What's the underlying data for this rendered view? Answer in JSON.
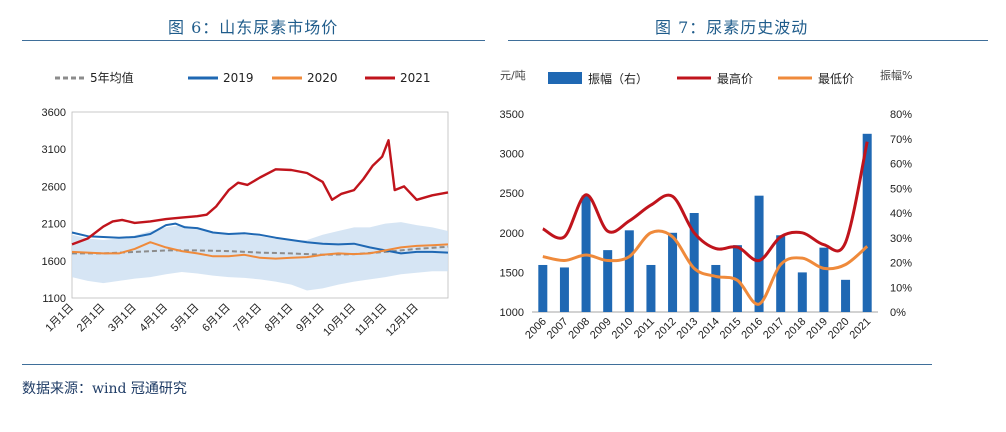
{
  "left": {
    "title": "图 6：山东尿素市场价",
    "chart_data": {
      "type": "line",
      "ylim": [
        1100,
        3600
      ],
      "yticks": [
        1100,
        1600,
        2100,
        2600,
        3100,
        3600
      ],
      "xticks": [
        "1月1日",
        "2月1日",
        "3月1日",
        "4月1日",
        "5月1日",
        "6月1日",
        "7月1日",
        "8月1日",
        "9月1日",
        "10月1日",
        "11月1日",
        "12月1日"
      ],
      "band": {
        "x": [
          0,
          0.5,
          1,
          1.5,
          2,
          2.5,
          3,
          3.5,
          4,
          4.5,
          5,
          5.5,
          6,
          6.5,
          7,
          7.5,
          8,
          8.5,
          9,
          9.5,
          10,
          10.5,
          11,
          11.5,
          12
        ],
        "upper": [
          1950,
          1900,
          1880,
          1900,
          1940,
          2000,
          2050,
          2080,
          2040,
          1980,
          1960,
          1950,
          1930,
          1900,
          1870,
          1880,
          1950,
          2000,
          2050,
          2050,
          2100,
          2120,
          2080,
          2050,
          2000
        ],
        "lower": [
          1380,
          1330,
          1300,
          1330,
          1360,
          1380,
          1420,
          1450,
          1430,
          1400,
          1380,
          1370,
          1350,
          1320,
          1280,
          1200,
          1230,
          1280,
          1320,
          1350,
          1380,
          1420,
          1440,
          1460,
          1460
        ]
      },
      "series": [
        {
          "name": "5年均值",
          "color": "#8c8c8c",
          "dash": true,
          "x": [
            0,
            1,
            2,
            3,
            4,
            5,
            6,
            7,
            8,
            9,
            10,
            11,
            12
          ],
          "y": [
            1700,
            1700,
            1720,
            1740,
            1740,
            1730,
            1710,
            1700,
            1680,
            1690,
            1720,
            1760,
            1790
          ]
        },
        {
          "name": "2019",
          "color": "#1f68b3",
          "x": [
            0,
            0.5,
            1,
            1.5,
            2,
            2.5,
            3,
            3.3,
            3.6,
            4,
            4.5,
            5,
            5.5,
            6,
            6.5,
            7,
            7.5,
            8,
            8.5,
            9,
            9.5,
            10,
            10.5,
            11,
            11.5,
            12
          ],
          "y": [
            1980,
            1930,
            1920,
            1910,
            1920,
            1960,
            2080,
            2100,
            2050,
            2040,
            1980,
            1960,
            1970,
            1950,
            1910,
            1880,
            1850,
            1830,
            1820,
            1830,
            1780,
            1740,
            1700,
            1720,
            1720,
            1710
          ]
        },
        {
          "name": "2020",
          "color": "#ef8a3b",
          "x": [
            0,
            0.5,
            1,
            1.5,
            2,
            2.5,
            3,
            3.5,
            4,
            4.5,
            5,
            5.5,
            6,
            6.5,
            7,
            7.5,
            8,
            8.5,
            9,
            9.5,
            10,
            10.5,
            11,
            11.5,
            12
          ],
          "y": [
            1720,
            1710,
            1700,
            1700,
            1760,
            1850,
            1780,
            1730,
            1700,
            1660,
            1660,
            1680,
            1640,
            1630,
            1640,
            1650,
            1680,
            1700,
            1690,
            1700,
            1740,
            1780,
            1800,
            1810,
            1820
          ]
        },
        {
          "name": "2021",
          "color": "#c0141c",
          "x": [
            0,
            0.5,
            1,
            1.3,
            1.6,
            2,
            2.5,
            3,
            3.5,
            4,
            4.3,
            4.6,
            5,
            5.3,
            5.6,
            6,
            6.5,
            7,
            7.5,
            8,
            8.3,
            8.6,
            9,
            9.3,
            9.6,
            9.9,
            10.1,
            10.3,
            10.6,
            11,
            11.5,
            12
          ],
          "y": [
            1820,
            1900,
            2060,
            2130,
            2150,
            2110,
            2130,
            2160,
            2180,
            2200,
            2220,
            2330,
            2550,
            2650,
            2620,
            2720,
            2830,
            2820,
            2780,
            2660,
            2420,
            2500,
            2550,
            2700,
            2880,
            3000,
            3220,
            2550,
            2600,
            2420,
            2480,
            2520
          ]
        }
      ]
    }
  },
  "right": {
    "title": "图 7：尿素历史波动",
    "left_unit": "元/吨",
    "right_unit": "振幅%",
    "chart_data": {
      "type": "bar",
      "categories": [
        "2006",
        "2007",
        "2008",
        "2009",
        "2010",
        "2011",
        "2012",
        "2013",
        "2014",
        "2015",
        "2016",
        "2017",
        "2018",
        "2019",
        "2020",
        "2021"
      ],
      "ylim": [
        1000,
        3500
      ],
      "yticks": [
        "1000",
        "1500",
        "2000",
        "2500",
        "3000",
        "3500"
      ],
      "y2lim": [
        0,
        80
      ],
      "y2ticks": [
        "0%",
        "10%",
        "20%",
        "30%",
        "40%",
        "50%",
        "60%",
        "70%",
        "80%"
      ],
      "series": [
        {
          "name": "振幅（右）",
          "type": "bar",
          "axis": "right",
          "color": "#1f68b3",
          "values": [
            19,
            18,
            47,
            25,
            33,
            19,
            32,
            40,
            19,
            27,
            47,
            31,
            16,
            26,
            13,
            72
          ]
        },
        {
          "name": "最高价",
          "type": "line",
          "axis": "left",
          "color": "#c0141c",
          "values": [
            2050,
            1950,
            2480,
            2020,
            2150,
            2350,
            2460,
            2000,
            1800,
            1820,
            1650,
            1950,
            2000,
            1850,
            1880,
            3150
          ]
        },
        {
          "name": "最低价",
          "type": "line",
          "axis": "left",
          "color": "#ef8a3b",
          "values": [
            1700,
            1650,
            1720,
            1650,
            1700,
            2000,
            1950,
            1550,
            1450,
            1400,
            1100,
            1600,
            1680,
            1550,
            1600,
            1830
          ]
        }
      ]
    }
  },
  "source": "数据来源：wind  冠通研究"
}
